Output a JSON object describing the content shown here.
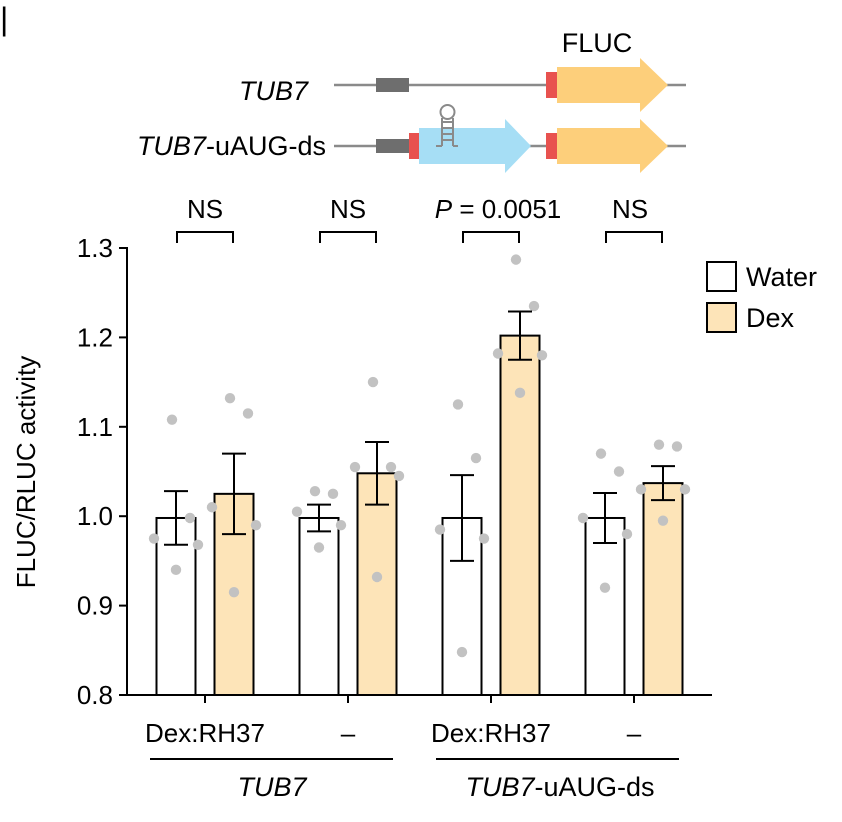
{
  "panel_mark": "|",
  "construct_diagram": {
    "fluc_label": "FLUC",
    "rows": [
      {
        "name_italic": "TUB7",
        "name_suffix": ""
      },
      {
        "name_italic": "TUB7",
        "name_suffix": "-uAUG-ds"
      }
    ],
    "colors": {
      "line": "#8a8a8a",
      "block": "#6e6e6e",
      "start": "#e8524f",
      "fluc": "#fdcf7b",
      "uorf": "#a6def5",
      "hairpin": "#8a8a8a"
    }
  },
  "chart_data": {
    "type": "bar",
    "ylabel": "FLUC/RLUC activity",
    "ylim": [
      0.8,
      1.3
    ],
    "yticks": [
      "0.8",
      "0.9",
      "1.0",
      "1.1",
      "1.2",
      "1.3"
    ],
    "categories": [
      "Dex:RH37",
      "–",
      "Dex:RH37",
      "–"
    ],
    "groups": [
      {
        "label_italic": "TUB7",
        "label_suffix": "",
        "span": [
          0,
          1
        ]
      },
      {
        "label_italic": "TUB7",
        "label_suffix": "-uAUG-ds",
        "span": [
          2,
          3
        ]
      }
    ],
    "series": [
      {
        "name": "Water",
        "color": "#ffffff",
        "values": [
          0.998,
          0.998,
          0.998,
          0.998
        ],
        "errors": [
          0.03,
          0.015,
          0.048,
          0.028
        ],
        "points": [
          [
            1.108,
            0.998,
            0.975,
            0.968,
            0.94
          ],
          [
            1.028,
            1.025,
            1.005,
            0.99,
            0.965
          ],
          [
            1.125,
            1.065,
            0.985,
            0.975,
            0.848
          ],
          [
            1.07,
            1.05,
            0.998,
            0.98,
            0.92
          ]
        ]
      },
      {
        "name": "Dex",
        "color": "#fde4b8",
        "values": [
          1.025,
          1.048,
          1.202,
          1.037
        ],
        "errors": [
          0.045,
          0.035,
          0.027,
          0.019
        ],
        "points": [
          [
            1.132,
            1.115,
            1.01,
            0.99,
            0.915
          ],
          [
            1.15,
            1.055,
            1.055,
            1.045,
            0.932
          ],
          [
            1.287,
            1.235,
            1.182,
            1.18,
            1.138
          ],
          [
            1.08,
            1.078,
            1.03,
            1.03,
            0.995
          ]
        ]
      }
    ],
    "significance": [
      {
        "label_italic": "",
        "label": "NS"
      },
      {
        "label_italic": "",
        "label": "NS"
      },
      {
        "label_italic": "P",
        "label": " = 0.0051"
      },
      {
        "label_italic": "",
        "label": "NS"
      }
    ],
    "legend": {
      "position": "top-right",
      "entries": [
        "Water",
        "Dex"
      ]
    },
    "point_color": "#c2c2c2",
    "grid": false
  }
}
